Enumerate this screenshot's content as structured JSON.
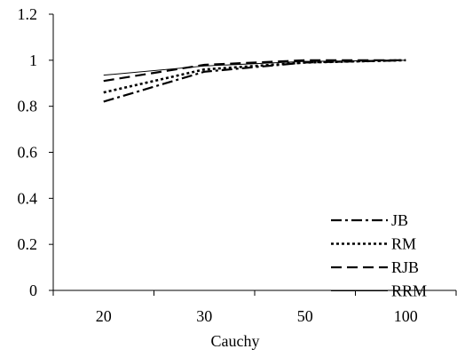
{
  "chart_data": {
    "type": "line",
    "title": "",
    "xlabel": "Cauchy",
    "ylabel": "",
    "categories": [
      "20",
      "30",
      "50",
      "100"
    ],
    "ylim": [
      0,
      1.2
    ],
    "yticks": [
      "0",
      "0.2",
      "0.4",
      "0.6",
      "0.8",
      "1",
      "1.2"
    ],
    "grid": false,
    "legend_position": "bottom-right",
    "series": [
      {
        "name": "JB",
        "values": [
          0.82,
          0.95,
          0.99,
          1.0
        ],
        "dash": "dash-dot",
        "color": "#000000"
      },
      {
        "name": "RM",
        "values": [
          0.86,
          0.96,
          0.99,
          1.0
        ],
        "dash": "dot",
        "color": "#000000"
      },
      {
        "name": "RJB",
        "values": [
          0.91,
          0.98,
          1.0,
          1.0
        ],
        "dash": "dash",
        "color": "#000000"
      },
      {
        "name": "RRM",
        "values": [
          0.935,
          0.975,
          0.995,
          1.0
        ],
        "dash": "solid",
        "color": "#000000"
      }
    ]
  }
}
